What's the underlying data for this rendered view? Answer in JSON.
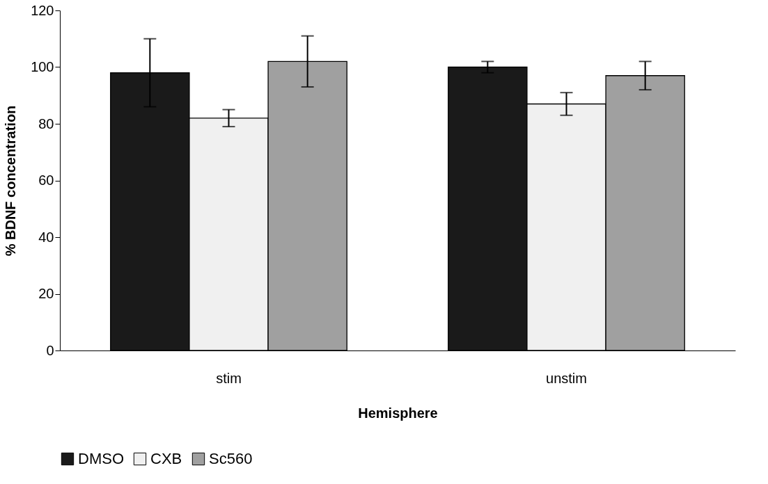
{
  "chart_data": {
    "type": "bar",
    "xlabel": "Hemisphere",
    "ylabel": "% BDNF concentration",
    "categories": [
      "stim",
      "unstim"
    ],
    "series": [
      {
        "name": "DMSO",
        "color": "#1a1a1a",
        "values": [
          98,
          100
        ],
        "errors": [
          12,
          2
        ]
      },
      {
        "name": "CXB",
        "color": "#f0f0f0",
        "values": [
          82,
          87
        ],
        "errors": [
          3,
          4
        ]
      },
      {
        "name": "Sc560",
        "color": "#a0a0a0",
        "values": [
          102,
          97
        ],
        "errors": [
          9,
          5
        ]
      }
    ],
    "ylim": [
      0,
      120
    ],
    "yticks": [
      0,
      20,
      40,
      60,
      80,
      100,
      120
    ],
    "grid": false,
    "legend": "bottom"
  }
}
